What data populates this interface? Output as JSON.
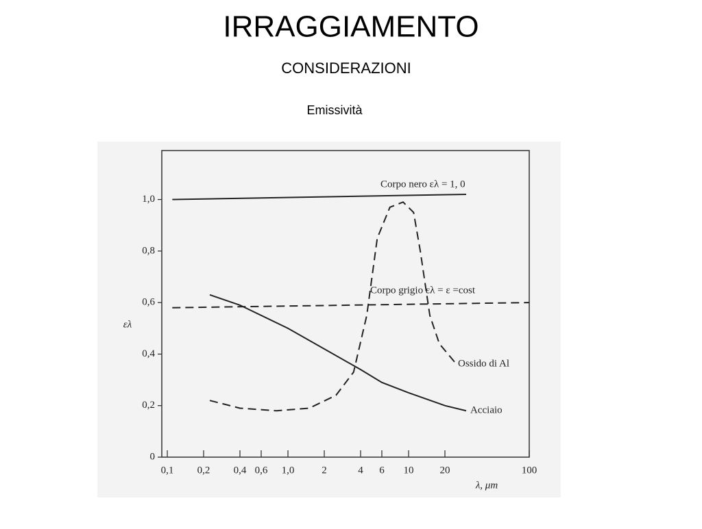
{
  "header": {
    "title": "IRRAGGIAMENTO",
    "subtitle": "CONSIDERAZIONI",
    "caption": "Emissività"
  },
  "chart_data": {
    "type": "line",
    "log_x": true,
    "xlabel": "λ, μm",
    "ylabel": "ελ",
    "xlim": [
      0.09,
      100
    ],
    "ylim": [
      0,
      1.19
    ],
    "xticks": [
      {
        "value": 0.1,
        "label": "0,1"
      },
      {
        "value": 0.2,
        "label": "0,2"
      },
      {
        "value": 0.4,
        "label": "0,4"
      },
      {
        "value": 0.6,
        "label": "0,6"
      },
      {
        "value": 1.0,
        "label": "1,0"
      },
      2,
      4,
      6,
      10,
      20,
      100
    ],
    "yticks": [
      0,
      {
        "value": 0.2,
        "label": "0,2"
      },
      {
        "value": 0.4,
        "label": "0,4"
      },
      {
        "value": 0.6,
        "label": "0,6"
      },
      {
        "value": 0.8,
        "label": "0,8"
      },
      {
        "value": 1.0,
        "label": "1,0"
      }
    ],
    "grid": false,
    "series": [
      {
        "name": "Corpo nero ελ = 1, 0",
        "color": "#222222",
        "dashed": false,
        "x": [
          0.11,
          30
        ],
        "values": [
          1.0,
          1.02
        ]
      },
      {
        "name": "Corpo grigio ελ = ε =cost",
        "color": "#222222",
        "dashed": true,
        "x": [
          0.11,
          100
        ],
        "values": [
          0.58,
          0.6
        ]
      },
      {
        "name": "Ossido di Al",
        "color": "#222222",
        "dashed": true,
        "x": [
          0.225,
          0.4,
          0.8,
          1.5,
          2.5,
          3.5,
          4.5,
          5.5,
          7,
          9,
          11,
          12.5,
          15,
          18,
          25
        ],
        "values": [
          0.22,
          0.19,
          0.18,
          0.19,
          0.24,
          0.33,
          0.55,
          0.85,
          0.97,
          0.99,
          0.95,
          0.8,
          0.55,
          0.44,
          0.36
        ]
      },
      {
        "name": "Acciaio",
        "color": "#222222",
        "dashed": false,
        "x": [
          0.225,
          0.4,
          1.0,
          2,
          4,
          6,
          10,
          20,
          30
        ],
        "values": [
          0.63,
          0.59,
          0.5,
          0.42,
          0.34,
          0.29,
          0.25,
          0.2,
          0.18
        ]
      }
    ]
  }
}
